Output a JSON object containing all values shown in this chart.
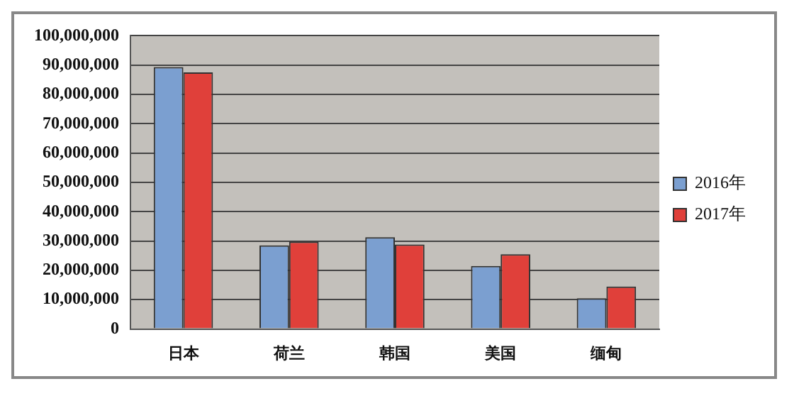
{
  "chart_data": {
    "type": "bar",
    "categories": [
      "日本",
      "荷兰",
      "韩国",
      "美国",
      "缅甸"
    ],
    "series": [
      {
        "name": "2016年",
        "color": "#7b9fd0",
        "values": [
          89300000,
          28500000,
          31300000,
          21500000,
          10500000
        ]
      },
      {
        "name": "2017年",
        "color": "#e0403a",
        "values": [
          87500000,
          29800000,
          28800000,
          25500000,
          14500000
        ]
      }
    ],
    "ylim": [
      0,
      100000000
    ],
    "yticks": [
      0,
      {
        "value": 10000000,
        "label": "10,000,000"
      },
      {
        "value": 20000000,
        "label": "20,000,000"
      },
      {
        "value": 30000000,
        "label": "30,000,000"
      },
      {
        "value": 40000000,
        "label": "40,000,000"
      },
      {
        "value": 50000000,
        "label": "50,000,000"
      },
      {
        "value": 60000000,
        "label": "60,000,000"
      },
      {
        "value": 70000000,
        "label": "70,000,000"
      },
      {
        "value": 80000000,
        "label": "80,000,000"
      },
      {
        "value": 90000000,
        "label": "90,000,000"
      },
      {
        "value": 100000000,
        "label": "100,000,000"
      }
    ],
    "grid": "y",
    "legend": "right"
  }
}
